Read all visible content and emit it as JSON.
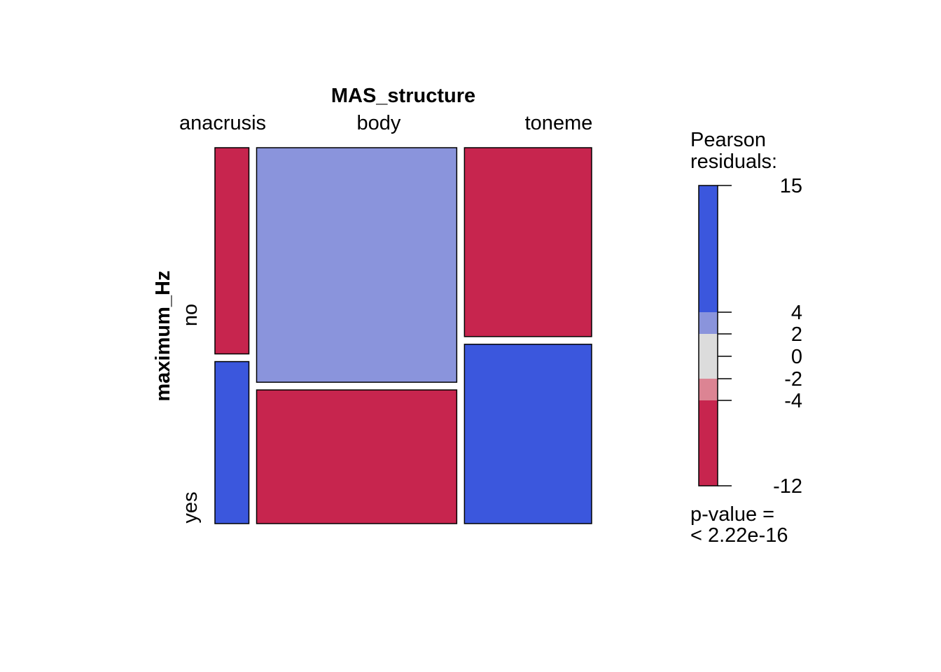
{
  "chart_data": {
    "type": "mosaic",
    "row_variable": "maximum_Hz",
    "column_variable": "MAS_structure",
    "columns": [
      "anacrusis",
      "body",
      "toneme"
    ],
    "rows": [
      "no",
      "yes"
    ],
    "column_proportions": [
      0.094,
      0.554,
      0.352
    ],
    "conditional_row_proportions": {
      "anacrusis": [
        0.56,
        0.44
      ],
      "body": [
        0.637,
        0.363
      ],
      "toneme": [
        0.513,
        0.487
      ]
    },
    "residual_colors": [
      [
        "#C7254E",
        "#8A94DC",
        "#C7254E"
      ],
      [
        "#3B57DD",
        "#C7254E",
        "#3B57DD"
      ]
    ],
    "legend": {
      "title_lines": [
        "Pearson",
        "residuals:"
      ],
      "range": [
        -12,
        15
      ],
      "ticks": [
        15,
        4,
        2,
        0,
        -2,
        -4,
        -12
      ],
      "tick_labels": [
        "15",
        "4",
        "2",
        "0",
        "-2",
        "-4",
        "-12"
      ],
      "bands": [
        {
          "from": 4,
          "to": 15,
          "color": "#3B57DD"
        },
        {
          "from": 2,
          "to": 4,
          "color": "#8A94DC"
        },
        {
          "from": -2,
          "to": 2,
          "color": "#DCDCDC"
        },
        {
          "from": -4,
          "to": -2,
          "color": "#DC8493"
        },
        {
          "from": -12,
          "to": -4,
          "color": "#C7254E"
        }
      ],
      "pvalue_lines": [
        "p-value =",
        "< 2.22e-16"
      ]
    }
  }
}
